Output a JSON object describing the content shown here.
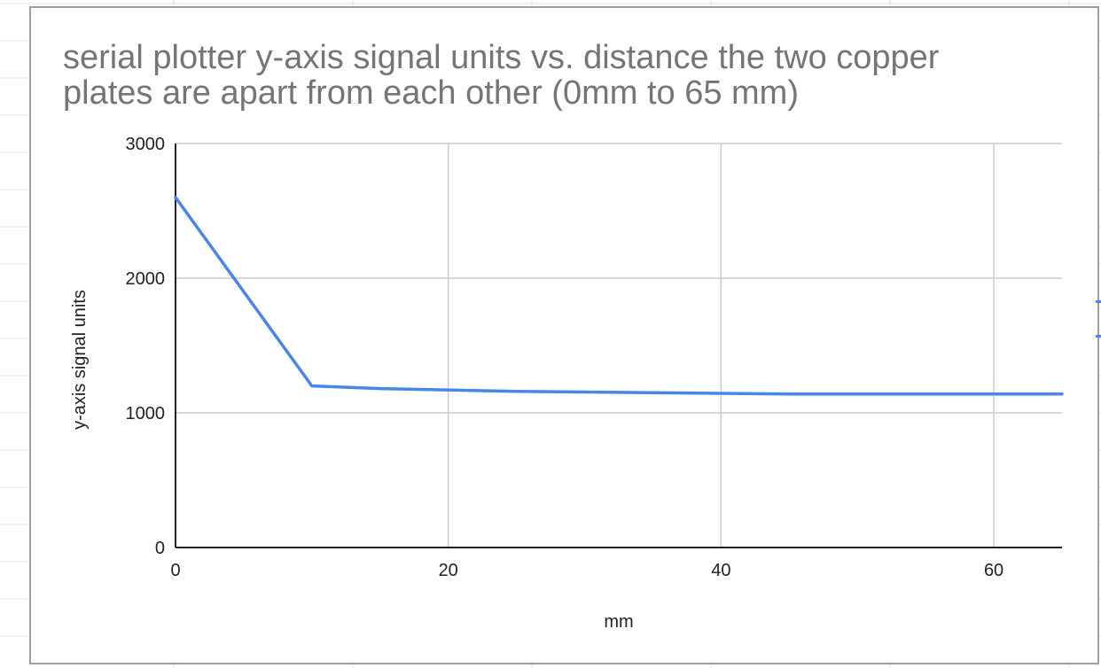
{
  "colors": {
    "series": "#4a86e8",
    "title": "#757575",
    "grid": "#cccccc",
    "axis": "#222222",
    "sheet_grid": "#e2e2e2",
    "card_border": "#9e9e9e"
  },
  "chart_data": {
    "type": "line",
    "title": "serial plotter y-axis signal units vs. distance the two copper plates are apart from each other (0mm to 65 mm)",
    "xlabel": "mm",
    "ylabel": "y-axis signal units",
    "xlim": [
      0,
      65
    ],
    "ylim": [
      0,
      3000
    ],
    "xticks": [
      "0",
      "20",
      "40",
      "60"
    ],
    "yticks": [
      "0",
      "1000",
      "2000",
      "3000"
    ],
    "grid": true,
    "legend": "none",
    "series": [
      {
        "x": [
          0,
          10,
          15,
          25,
          35,
          45,
          55,
          65
        ],
        "y": [
          2600,
          1200,
          1180,
          1160,
          1150,
          1140,
          1140,
          1140
        ]
      }
    ]
  }
}
